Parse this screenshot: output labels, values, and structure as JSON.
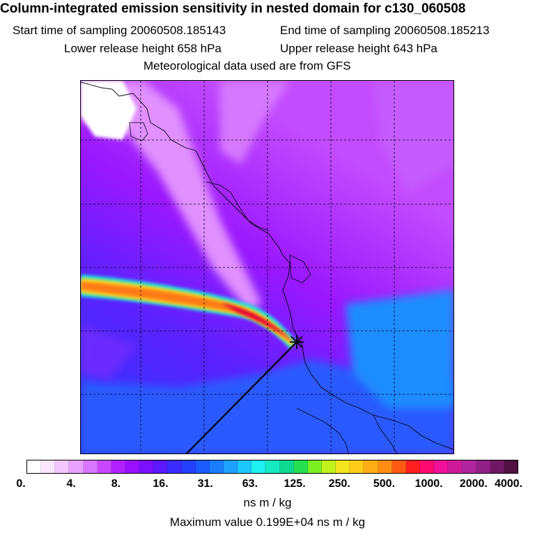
{
  "title": {
    "main": "Column-integrated emission sensitivity in nested domain for c130_060508",
    "start_time": "Start time of sampling 20060508.185143",
    "end_time": "End time of sampling 20060508.185213",
    "lower_height": "Lower release height  658 hPa",
    "upper_height": "Upper release height  643 hPa",
    "met_source": "Meteorological data used are from GFS"
  },
  "map": {
    "background_low": "#7b2cf5",
    "background_high": "#e8a8ff",
    "plume_core": "#e0003a",
    "release_marker": "star"
  },
  "colorbar": {
    "colors": [
      "#ffffff",
      "#fbe6ff",
      "#f2c6ff",
      "#e7a3ff",
      "#d976ff",
      "#c848ff",
      "#b021ff",
      "#9910ff",
      "#7a12ff",
      "#5b19ff",
      "#3b2bff",
      "#2440ff",
      "#1b5cff",
      "#1c7dff",
      "#1ea2ff",
      "#1ec8ff",
      "#1ff0f0",
      "#17e9c2",
      "#0fd890",
      "#24e050",
      "#7cef23",
      "#c1f21e",
      "#f2e41d",
      "#ffcd19",
      "#ffad15",
      "#ff8c12",
      "#ff5a12",
      "#ff1e20",
      "#ff0a70",
      "#f0109a",
      "#d01a9c",
      "#b0249d",
      "#901f86",
      "#701863",
      "#501040"
    ],
    "tick_labels": [
      "0.",
      "4.",
      "8.",
      "16.",
      "31.",
      "63.",
      "125.",
      "250.",
      "500.",
      "1000.",
      "2000.",
      "4000."
    ],
    "units": "ns m / kg"
  },
  "max_value": "Maximum value  0.199E+04 ns m / kg"
}
